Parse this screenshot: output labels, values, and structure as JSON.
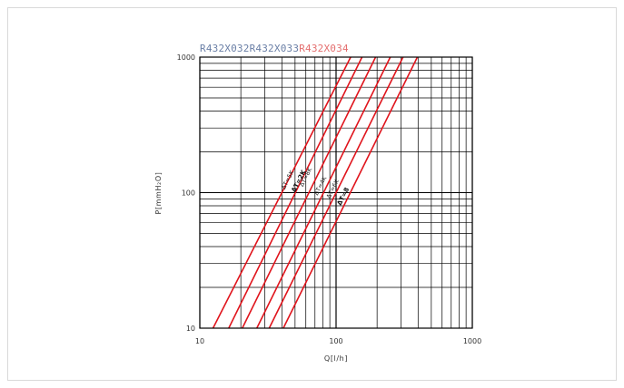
{
  "legend": [
    {
      "text": "R432X032",
      "color": "#6a7fa6"
    },
    {
      "text": "R432X033",
      "color": "#6a7fa6"
    },
    {
      "text": "R432X034",
      "color": "#e46f6f"
    }
  ],
  "chart_data": {
    "type": "line",
    "title": "",
    "xlabel": "Q[l/h]",
    "ylabel": "P[mmH₂O]",
    "xscale": "log",
    "yscale": "log",
    "xlim": [
      10,
      1000
    ],
    "ylim": [
      10,
      1000
    ],
    "x_ticks": [
      "10",
      "100",
      "1000"
    ],
    "y_ticks": [
      "10",
      "100",
      "1000"
    ],
    "grid": true,
    "line_color": "#e0141c",
    "series": [
      {
        "x": [
          12.5,
          128
        ],
        "y": [
          10,
          1000
        ]
      },
      {
        "x": [
          16.3,
          155
        ],
        "y": [
          10,
          1000
        ]
      },
      {
        "x": [
          20.5,
          195
        ],
        "y": [
          10,
          1000
        ]
      },
      {
        "x": [
          26.2,
          250
        ],
        "y": [
          10,
          1000
        ]
      },
      {
        "x": [
          32.3,
          310
        ],
        "y": [
          10,
          1000
        ]
      },
      {
        "x": [
          41.0,
          395
        ],
        "y": [
          10,
          1000
        ]
      }
    ],
    "annotations": [
      {
        "text": "ΔT=5K",
        "x": 42,
        "y": 105,
        "bold": false
      },
      {
        "text": "ΔT=2K",
        "x": 50,
        "y": 100,
        "bold": true
      },
      {
        "text": "ΔT=8K",
        "x": 57,
        "y": 110,
        "bold": false
      },
      {
        "text": "ΔT=4K",
        "x": 73,
        "y": 95,
        "bold": false
      },
      {
        "text": "ΔT=6K",
        "x": 90,
        "y": 90,
        "bold": false
      },
      {
        "text": "ΔT=8",
        "x": 108,
        "y": 80,
        "bold": true
      }
    ]
  }
}
